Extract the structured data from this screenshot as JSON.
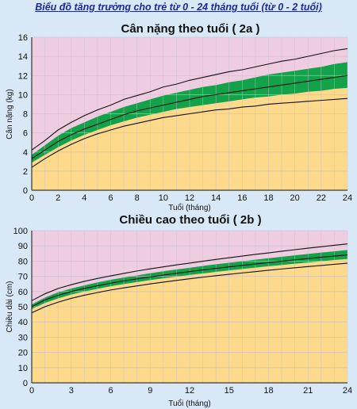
{
  "page": {
    "title": "Biểu đồ tăng trưởng cho trẻ từ 0 - 24 tháng tuổi (từ 0 - 2 tuổi)"
  },
  "colors": {
    "background": "#d8e8f7",
    "upper_zone": "#efcde0",
    "lower_zone": "#fdd98c",
    "normal_band": "#13a14a",
    "curve_line": "#111111",
    "grid": "#c9c0c9"
  },
  "chart_data": [
    {
      "type": "area",
      "title": "Cân nặng theo tuổi ( 2a )",
      "xlabel": "Tuổi (tháng)",
      "ylabel": "Cân nặng (kg)",
      "xlim": [
        0,
        24
      ],
      "ylim": [
        0,
        16
      ],
      "x_ticks": [
        "0",
        "2",
        "4",
        "6",
        "8",
        "10",
        "12",
        "14",
        "16",
        "18",
        "20",
        "22",
        "24"
      ],
      "y_ticks": [
        "0",
        "2",
        "4",
        "6",
        "8",
        "10",
        "12",
        "14",
        "16"
      ],
      "grid": true,
      "x": [
        0,
        1,
        2,
        3,
        4,
        5,
        6,
        7,
        8,
        9,
        10,
        11,
        12,
        13,
        14,
        15,
        16,
        17,
        18,
        19,
        20,
        21,
        22,
        23,
        24
      ],
      "series": [
        {
          "values": [
            2.4,
            3.3,
            4.1,
            4.8,
            5.4,
            5.9,
            6.3,
            6.7,
            7.0,
            7.3,
            7.6,
            7.8,
            8.0,
            8.2,
            8.4,
            8.5,
            8.7,
            8.8,
            9.0,
            9.1,
            9.2,
            9.3,
            9.4,
            9.5,
            9.6
          ]
        },
        {
          "values": [
            2.9,
            3.7,
            4.5,
            5.2,
            5.8,
            6.3,
            6.8,
            7.2,
            7.6,
            7.9,
            8.2,
            8.5,
            8.7,
            8.9,
            9.1,
            9.3,
            9.5,
            9.7,
            9.8,
            10.0,
            10.1,
            10.3,
            10.4,
            10.6,
            10.7
          ]
        },
        {
          "values": [
            3.3,
            4.2,
            5.1,
            5.8,
            6.4,
            6.9,
            7.4,
            7.9,
            8.3,
            8.6,
            8.9,
            9.2,
            9.5,
            9.8,
            10.0,
            10.2,
            10.4,
            10.6,
            10.8,
            11.0,
            11.2,
            11.4,
            11.6,
            11.8,
            12.0
          ]
        },
        {
          "values": [
            3.7,
            4.7,
            5.7,
            6.5,
            7.1,
            7.7,
            8.2,
            8.7,
            9.1,
            9.5,
            9.9,
            10.2,
            10.5,
            10.8,
            11.0,
            11.3,
            11.5,
            11.8,
            12.1,
            12.3,
            12.5,
            12.7,
            12.9,
            13.2,
            13.4
          ]
        },
        {
          "values": [
            4.2,
            5.2,
            6.3,
            7.1,
            7.8,
            8.4,
            8.9,
            9.5,
            9.9,
            10.3,
            10.8,
            11.1,
            11.5,
            11.8,
            12.1,
            12.4,
            12.6,
            12.9,
            13.2,
            13.5,
            13.7,
            14.0,
            14.3,
            14.6,
            14.8
          ]
        }
      ]
    },
    {
      "type": "area",
      "title": "Chiều cao theo tuổi ( 2b )",
      "xlabel": "Tuổi (tháng)",
      "ylabel": "Chiều dài (cm)",
      "xlim": [
        0,
        24
      ],
      "ylim": [
        0,
        100
      ],
      "x_ticks": [
        "0",
        "3",
        "6",
        "9",
        "12",
        "15",
        "18",
        "21",
        "24"
      ],
      "y_ticks": [
        "0",
        "10",
        "20",
        "30",
        "40",
        "50",
        "60",
        "70",
        "80",
        "90",
        "100"
      ],
      "grid": true,
      "x": [
        0,
        1,
        2,
        3,
        4,
        5,
        6,
        7,
        8,
        9,
        10,
        11,
        12,
        13,
        14,
        15,
        16,
        17,
        18,
        19,
        20,
        21,
        22,
        23,
        24
      ],
      "series": [
        {
          "values": [
            46,
            50,
            53,
            55.5,
            57.6,
            59.3,
            61,
            62.4,
            63.7,
            65,
            66.2,
            67.3,
            68.4,
            69.4,
            70.4,
            71.3,
            72.2,
            73.1,
            74,
            74.8,
            75.6,
            76.4,
            77.1,
            77.9,
            78.6
          ]
        },
        {
          "values": [
            48.5,
            52.5,
            55.5,
            58,
            60,
            61.8,
            63.5,
            64.9,
            66.2,
            67.5,
            68.7,
            69.8,
            70.9,
            71.9,
            72.9,
            73.9,
            74.8,
            75.7,
            76.6,
            77.4,
            78.3,
            79.1,
            79.9,
            80.7,
            81.4
          ]
        },
        {
          "values": [
            50,
            54.5,
            57.5,
            60,
            62,
            63.8,
            65.5,
            67,
            68.3,
            69.6,
            70.8,
            72,
            73.1,
            74.2,
            75.2,
            76.2,
            77.2,
            78.1,
            79,
            79.9,
            80.8,
            81.7,
            82.5,
            83.3,
            84.1
          ]
        },
        {
          "values": [
            51.5,
            56,
            59.5,
            62,
            64,
            66,
            67.7,
            69.2,
            70.6,
            72,
            73.3,
            74.5,
            75.6,
            76.8,
            77.9,
            78.9,
            79.9,
            80.9,
            81.9,
            82.8,
            83.8,
            84.7,
            85.6,
            86.4,
            87.3
          ]
        },
        {
          "values": [
            54,
            58.5,
            62,
            64.5,
            66.7,
            68.6,
            70.3,
            71.9,
            73.5,
            74.9,
            76.2,
            77.5,
            78.7,
            79.9,
            81.1,
            82.2,
            83.3,
            84.4,
            85.4,
            86.5,
            87.5,
            88.5,
            89.4,
            90.4,
            91.3
          ]
        }
      ]
    }
  ]
}
